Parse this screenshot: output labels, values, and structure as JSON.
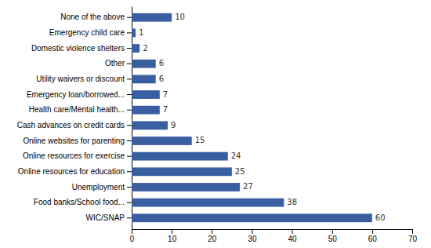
{
  "chart_data": {
    "type": "bar",
    "orientation": "horizontal",
    "categories": [
      "WIC/SNAP",
      "Food banks/School food...",
      "Unemployment",
      "Online resources for education",
      "Online resources for exercise",
      "Online websites for parenting",
      "Cash advances on credit cards",
      "Health care/Mental health...",
      "Emergency loan/borrowed...",
      "Utility waivers or discount",
      "Other",
      "Domestic violence shelters",
      "Emergency child care",
      "None of the above"
    ],
    "values": [
      60,
      38,
      27,
      25,
      24,
      15,
      9,
      7,
      7,
      6,
      6,
      2,
      1,
      10
    ],
    "color": "#3a5fa0",
    "xlim": [
      0,
      70
    ],
    "xticks": [
      0,
      10,
      20,
      30,
      40,
      50,
      60,
      70
    ],
    "data_labels": true
  }
}
